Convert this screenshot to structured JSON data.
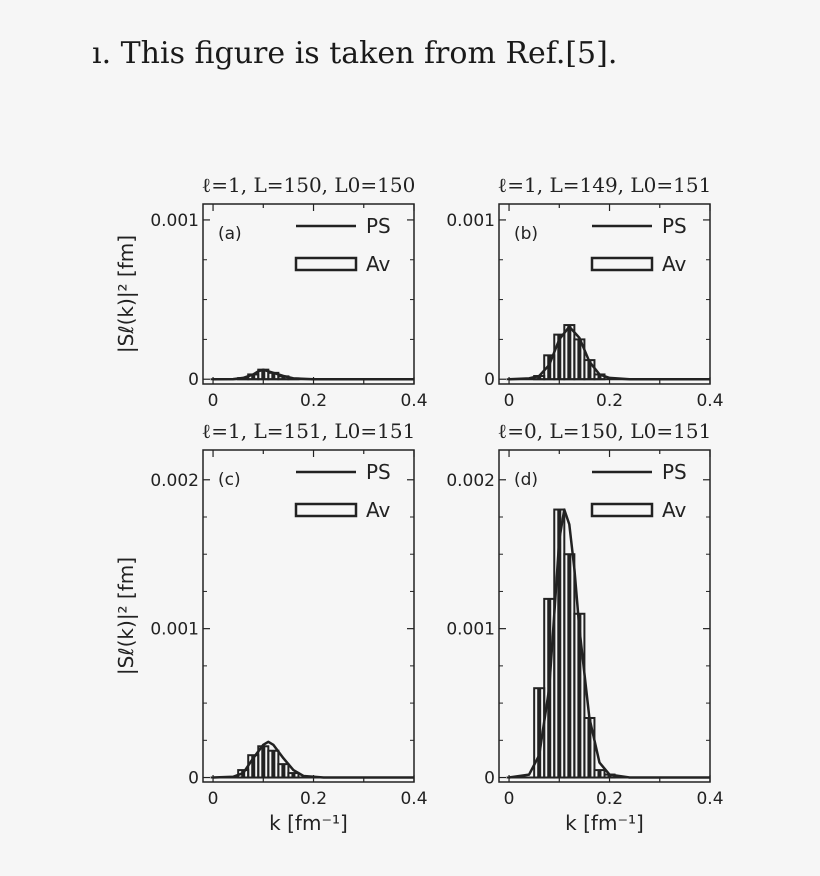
{
  "caption": "ı. This figure is taken from Ref.[5].",
  "chart_data": [
    {
      "type": "bar",
      "panel_label": "(a)",
      "title": "ℓ=1, L=150, L0=150",
      "xlim": [
        -0.02,
        0.4
      ],
      "ylim": [
        -3e-05,
        0.0011
      ],
      "xticks": [
        "0",
        "0.2",
        "0.4"
      ],
      "yticks": [
        "0",
        "0.001"
      ],
      "ytick_values": [
        0,
        0.001
      ],
      "ylabel": "|Sℓ(k)|² [fm]",
      "xlabel": "",
      "legend": [
        "PS",
        "Av"
      ],
      "series": [
        {
          "name": "PS",
          "type": "line",
          "x": [
            0,
            0.04,
            0.06,
            0.08,
            0.09,
            0.1,
            0.11,
            0.12,
            0.14,
            0.16,
            0.2,
            0.4
          ],
          "y": [
            0,
            1e-06,
            8e-06,
            3e-05,
            5e-05,
            6e-05,
            5e-05,
            4e-05,
            2e-05,
            5e-06,
            0,
            0
          ]
        },
        {
          "name": "Av",
          "type": "bar",
          "width": 0.02,
          "x": [
            0.06,
            0.08,
            0.1,
            0.12,
            0.14,
            0.16
          ],
          "y": [
            7e-06,
            3e-05,
            6e-05,
            4e-05,
            1.8e-05,
            5e-06
          ]
        }
      ]
    },
    {
      "type": "bar",
      "panel_label": "(b)",
      "title": "ℓ=1, L=149, L0=151",
      "xlim": [
        -0.02,
        0.4
      ],
      "ylim": [
        -3e-05,
        0.0011
      ],
      "xticks": [
        "0",
        "0.2",
        "0.4"
      ],
      "yticks": [
        "0",
        "0.001"
      ],
      "ytick_values": [
        0,
        0.001
      ],
      "ylabel": "",
      "xlabel": "",
      "legend": [
        "PS",
        "Av"
      ],
      "series": [
        {
          "name": "PS",
          "type": "line",
          "x": [
            0,
            0.04,
            0.06,
            0.08,
            0.1,
            0.12,
            0.14,
            0.16,
            0.18,
            0.2,
            0.24,
            0.4
          ],
          "y": [
            0,
            5e-06,
            2e-05,
            9e-05,
            0.00025,
            0.00033,
            0.00026,
            0.00011,
            3e-05,
            8e-06,
            0,
            0
          ]
        },
        {
          "name": "Av",
          "type": "bar",
          "width": 0.02,
          "x": [
            0.06,
            0.08,
            0.1,
            0.12,
            0.14,
            0.16,
            0.18
          ],
          "y": [
            2e-05,
            0.00015,
            0.00028,
            0.00034,
            0.00025,
            0.00012,
            3e-05
          ]
        }
      ]
    },
    {
      "type": "bar",
      "panel_label": "(c)",
      "title": "ℓ=1, L=151, L0=151",
      "xlim": [
        -0.02,
        0.4
      ],
      "ylim": [
        -3e-05,
        0.0022
      ],
      "xticks": [
        "0",
        "0.2",
        "0.4"
      ],
      "yticks": [
        "0",
        "0.001",
        "0.002"
      ],
      "ytick_values": [
        0,
        0.001,
        0.002
      ],
      "ylabel": "|Sℓ(k)|² [fm]",
      "xlabel": "k [fm⁻¹]",
      "legend": [
        "PS",
        "Av"
      ],
      "series": [
        {
          "name": "PS",
          "type": "line",
          "x": [
            0,
            0.04,
            0.06,
            0.08,
            0.1,
            0.11,
            0.12,
            0.14,
            0.16,
            0.18,
            0.22,
            0.4
          ],
          "y": [
            0,
            5e-06,
            3e-05,
            0.00013,
            0.00022,
            0.00024,
            0.00022,
            0.00013,
            5e-05,
            1e-05,
            0,
            0
          ]
        },
        {
          "name": "Av",
          "type": "bar",
          "width": 0.02,
          "x": [
            0.06,
            0.08,
            0.1,
            0.12,
            0.14,
            0.16
          ],
          "y": [
            5e-05,
            0.00015,
            0.00021,
            0.00018,
            9e-05,
            3e-05
          ]
        }
      ]
    },
    {
      "type": "bar",
      "panel_label": "(d)",
      "title": "ℓ=0, L=150, L0=151",
      "xlim": [
        -0.02,
        0.4
      ],
      "ylim": [
        -3e-05,
        0.0022
      ],
      "xticks": [
        "0",
        "0.2",
        "0.4"
      ],
      "yticks": [
        "0",
        "0.001",
        "0.002"
      ],
      "ytick_values": [
        0,
        0.001,
        0.002
      ],
      "ylabel": "",
      "xlabel": "k [fm⁻¹]",
      "legend": [
        "PS",
        "Av"
      ],
      "series": [
        {
          "name": "PS",
          "type": "line",
          "x": [
            0,
            0.04,
            0.06,
            0.08,
            0.09,
            0.1,
            0.11,
            0.12,
            0.13,
            0.14,
            0.16,
            0.18,
            0.2,
            0.24,
            0.4
          ],
          "y": [
            0,
            2e-05,
            0.00015,
            0.0006,
            0.0011,
            0.0016,
            0.0018,
            0.0017,
            0.0014,
            0.001,
            0.0004,
            0.0001,
            2e-05,
            0,
            0
          ]
        },
        {
          "name": "Av",
          "type": "bar",
          "width": 0.02,
          "x": [
            0.06,
            0.08,
            0.1,
            0.12,
            0.14,
            0.16,
            0.18,
            0.2
          ],
          "y": [
            0.0006,
            0.0012,
            0.0018,
            0.0015,
            0.0011,
            0.0004,
            5e-05,
            2e-05
          ]
        }
      ]
    }
  ]
}
